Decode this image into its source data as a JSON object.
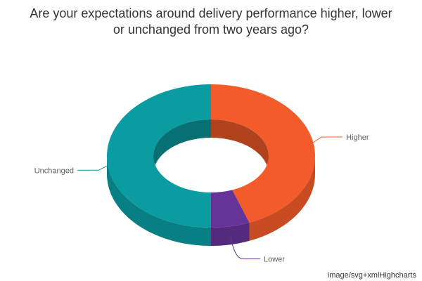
{
  "chart_data": {
    "type": "pie",
    "variant": "3d donut",
    "title_lines": [
      "Are your expectations around delivery performance higher, lower",
      "or unchanged from two years ago?"
    ],
    "slices": [
      {
        "name": "Higher",
        "value": 44,
        "color": "#f45b2a"
      },
      {
        "name": "Lower",
        "value": 6,
        "color": "#663399"
      },
      {
        "name": "Unchanged",
        "value": 50,
        "color": "#0a9ca0"
      }
    ],
    "legend": "none",
    "data_labels": "outside with connector lines"
  },
  "credits": "image/svg+xmlHighcharts"
}
